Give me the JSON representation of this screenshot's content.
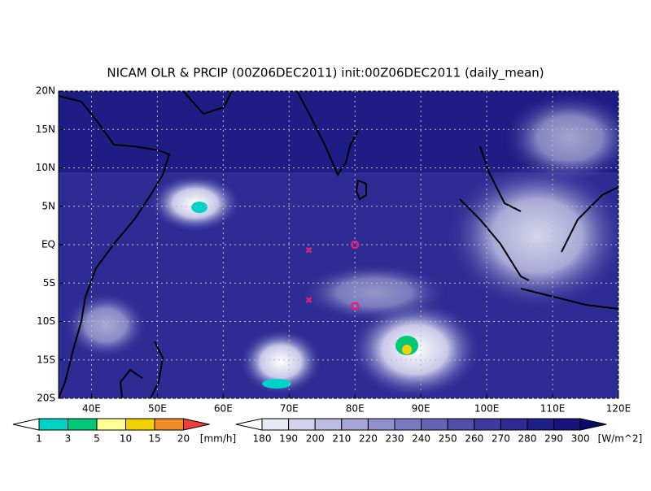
{
  "map": {
    "title": "NICAM OLR & PRCIP (00Z06DEC2011) init:00Z06DEC2011 (daily_mean)",
    "xlim": [
      35,
      120
    ],
    "ylim": [
      -20,
      20
    ],
    "xticks": [
      {
        "value": 40,
        "label": "40E"
      },
      {
        "value": 50,
        "label": "50E"
      },
      {
        "value": 60,
        "label": "60E"
      },
      {
        "value": 70,
        "label": "70E"
      },
      {
        "value": 80,
        "label": "80E"
      },
      {
        "value": 90,
        "label": "90E"
      },
      {
        "value": 100,
        "label": "100E"
      },
      {
        "value": 110,
        "label": "110E"
      },
      {
        "value": 120,
        "label": "120E"
      }
    ],
    "yticks": [
      {
        "value": -20,
        "label": "20S"
      },
      {
        "value": -15,
        "label": "15S"
      },
      {
        "value": -10,
        "label": "10S"
      },
      {
        "value": -5,
        "label": "5S"
      },
      {
        "value": 0,
        "label": "EQ"
      },
      {
        "value": 5,
        "label": "5N"
      },
      {
        "value": 10,
        "label": "10N"
      },
      {
        "value": 15,
        "label": "15N"
      },
      {
        "value": 20,
        "label": "20N"
      }
    ],
    "markers": [
      {
        "lon": 73,
        "lat": -0.7,
        "shape": "x"
      },
      {
        "lon": 73,
        "lat": -7.2,
        "shape": "x"
      },
      {
        "lon": 80,
        "lat": 0,
        "shape": "o"
      },
      {
        "lon": 80,
        "lat": -8,
        "shape": "o"
      }
    ],
    "marker_color": "#e0207a"
  },
  "precip_bar": {
    "levels": [
      1,
      3,
      5,
      10,
      15,
      20
    ],
    "unit": "[mm/h]",
    "colors": [
      "#ffffff",
      "#00d2c8",
      "#00c878",
      "#ffff96",
      "#f0d200",
      "#f08c28",
      "#f03c3c"
    ]
  },
  "olr_bar": {
    "levels": [
      180,
      190,
      200,
      210,
      220,
      230,
      240,
      250,
      260,
      270,
      280,
      290,
      300
    ],
    "unit": "[W/m^2]",
    "colors": [
      "#ffffff",
      "#e8e8f4",
      "#d2d2ec",
      "#bcbce2",
      "#a6a6d8",
      "#9090cc",
      "#7a7ac2",
      "#6464b6",
      "#5050aa",
      "#3c3ca0",
      "#2c2c94",
      "#1e1e88",
      "#14147c",
      "#0a0a6e"
    ]
  }
}
